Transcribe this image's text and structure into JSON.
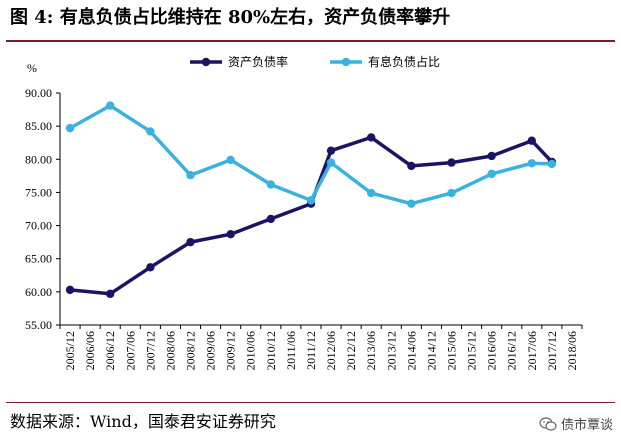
{
  "title": "图 4: 有息负债占比维持在 80%左右，资产负债率攀升",
  "source": "数据来源：Wind，国泰君安证券研究",
  "watermark": {
    "text": "债市覃谈",
    "icon": "wechat-icon"
  },
  "chart_data": {
    "type": "line",
    "ylabel": "%",
    "ylim": [
      55,
      90
    ],
    "yticks": [
      "55.00",
      "60.00",
      "65.00",
      "70.00",
      "75.00",
      "80.00",
      "85.00",
      "90.00"
    ],
    "grid": false,
    "legend_position": "top",
    "categories": [
      "2005/12",
      "2006/06",
      "2006/12",
      "2007/06",
      "2007/12",
      "2008/06",
      "2008/12",
      "2009/06",
      "2009/12",
      "2010/06",
      "2010/12",
      "2011/06",
      "2011/12",
      "2012/06",
      "2012/12",
      "2013/06",
      "2013/12",
      "2014/06",
      "2014/12",
      "2015/06",
      "2015/12",
      "2016/06",
      "2016/12",
      "2017/06",
      "2017/12",
      "2018/06"
    ],
    "series": [
      {
        "name": "资产负债率",
        "color": "#1b1464",
        "points": [
          [
            0,
            60.3
          ],
          [
            2,
            59.7
          ],
          [
            4,
            63.7
          ],
          [
            6,
            67.5
          ],
          [
            8,
            68.7
          ],
          [
            10,
            71.0
          ],
          [
            12,
            73.3
          ],
          [
            13,
            81.3
          ],
          [
            15,
            83.3
          ],
          [
            17,
            79.0
          ],
          [
            19,
            79.5
          ],
          [
            21,
            80.5
          ],
          [
            23,
            82.8
          ],
          [
            24,
            79.6
          ]
        ]
      },
      {
        "name": "有息负债占比",
        "color": "#3bb1e0",
        "points": [
          [
            0,
            84.7
          ],
          [
            2,
            88.1
          ],
          [
            4,
            84.2
          ],
          [
            6,
            77.6
          ],
          [
            8,
            79.9
          ],
          [
            10,
            76.2
          ],
          [
            12,
            73.8
          ],
          [
            13,
            79.5
          ],
          [
            15,
            74.9
          ],
          [
            17,
            73.3
          ],
          [
            19,
            74.9
          ],
          [
            21,
            77.8
          ],
          [
            23,
            79.4
          ],
          [
            24,
            79.3
          ]
        ]
      }
    ]
  }
}
